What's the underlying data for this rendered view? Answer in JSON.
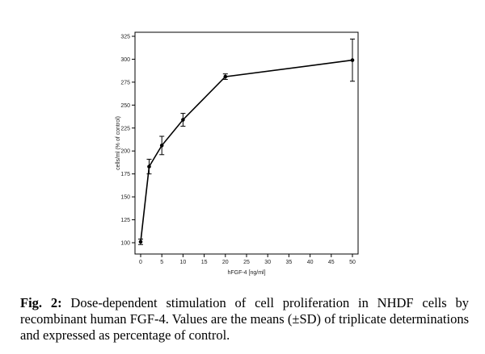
{
  "caption": {
    "prefix": "Fig. 2:",
    "text": " Dose-dependent stimulation of cell proliferation in NHDF cells by recombinant human FGF-4. Values are the means (±SD) of triplicate determinations and expressed as percentage of control."
  },
  "chart_data": {
    "type": "line",
    "title": "",
    "xlabel": "hFGF-4 [ng/ml]",
    "ylabel": "cells/ml (% of control)",
    "xlim": [
      0,
      50
    ],
    "ylim": [
      100,
      325
    ],
    "xticks": [
      0,
      5,
      10,
      15,
      20,
      25,
      30,
      35,
      40,
      45,
      50
    ],
    "yticks": [
      100,
      125,
      150,
      175,
      200,
      225,
      250,
      275,
      300,
      325
    ],
    "grid": false,
    "legend": "none",
    "series": [
      {
        "x": [
          0,
          2,
          5,
          10,
          20,
          50
        ],
        "y": [
          101,
          183,
          206,
          234,
          281,
          299
        ],
        "error": [
          3,
          8,
          10,
          7,
          3,
          23
        ]
      }
    ],
    "colors": {
      "line": "#000000",
      "marker": "#000000"
    }
  }
}
